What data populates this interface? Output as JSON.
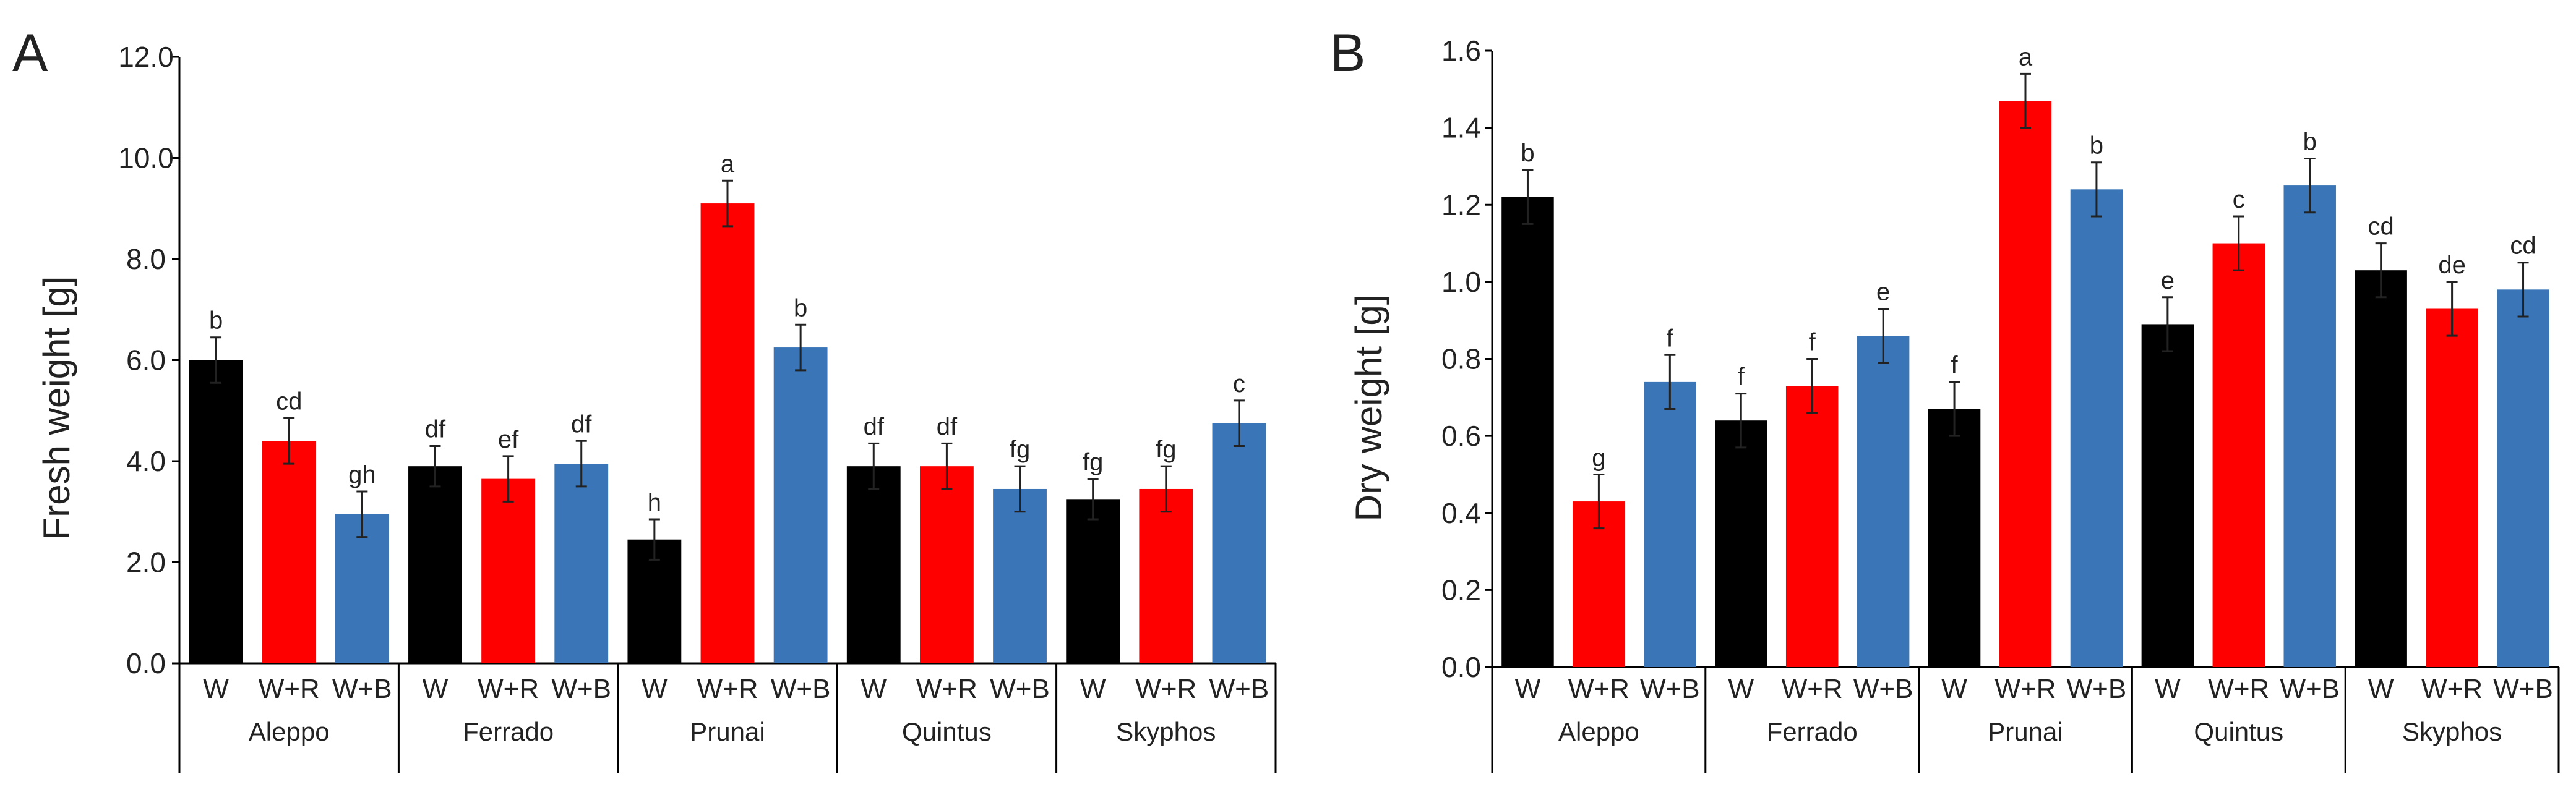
{
  "figure": {
    "colors": {
      "W": "#000000",
      "W+R": "#ff0000",
      "W+B": "#3a76b7",
      "axis": "#000000",
      "error_bar": "#222222"
    }
  },
  "chart_data": [
    {
      "type": "bar",
      "panel_label": "A",
      "title": "",
      "ylabel": "Fresh weight  [g]",
      "xlabel": "",
      "ylim": [
        0,
        12
      ],
      "ytick_values": [
        0,
        2,
        4,
        6,
        8,
        10,
        12
      ],
      "ytick_labels": [
        "0.0",
        "2.0",
        "4.0",
        "6.0",
        "8.0",
        "10.0",
        "12.0"
      ],
      "groups": [
        "Aleppo",
        "Ferrado",
        "Prunai",
        "Quintus",
        "Skyphos"
      ],
      "treatments": [
        "W",
        "W+R",
        "W+B"
      ],
      "series": [
        {
          "name": "W",
          "color": "#000000",
          "values": [
            6.0,
            3.9,
            2.45,
            3.9,
            3.25
          ],
          "errors": [
            0.45,
            0.4,
            0.4,
            0.45,
            0.4
          ],
          "letters": [
            "b",
            "df",
            "h",
            "df",
            "fg"
          ]
        },
        {
          "name": "W+R",
          "color": "#ff0000",
          "values": [
            4.4,
            3.65,
            9.1,
            3.9,
            3.45
          ],
          "errors": [
            0.45,
            0.45,
            0.45,
            0.45,
            0.45
          ],
          "letters": [
            "cd",
            "ef",
            "a",
            "df",
            "fg"
          ]
        },
        {
          "name": "W+B",
          "color": "#3a76b7",
          "values": [
            2.95,
            3.95,
            6.25,
            3.45,
            4.75
          ],
          "errors": [
            0.45,
            0.45,
            0.45,
            0.45,
            0.45
          ],
          "letters": [
            "gh",
            "df",
            "b",
            "fg",
            "c"
          ]
        }
      ]
    },
    {
      "type": "bar",
      "panel_label": "B",
      "title": "",
      "ylabel": "Dry weight  [g]",
      "xlabel": "",
      "ylim": [
        0,
        1.6
      ],
      "ytick_values": [
        0,
        0.2,
        0.4,
        0.6,
        0.8,
        1.0,
        1.2,
        1.4,
        1.6
      ],
      "ytick_labels": [
        "0.0",
        "0.2",
        "0.4",
        "0.6",
        "0.8",
        "1.0",
        "1.2",
        "1.4",
        "1.6"
      ],
      "groups": [
        "Aleppo",
        "Ferrado",
        "Prunai",
        "Quintus",
        "Skyphos"
      ],
      "treatments": [
        "W",
        "W+R",
        "W+B"
      ],
      "series": [
        {
          "name": "W",
          "color": "#000000",
          "values": [
            1.22,
            0.64,
            0.67,
            0.89,
            1.03
          ],
          "errors": [
            0.07,
            0.07,
            0.07,
            0.07,
            0.07
          ],
          "letters": [
            "b",
            "f",
            "f",
            "e",
            "cd"
          ]
        },
        {
          "name": "W+R",
          "color": "#ff0000",
          "values": [
            0.43,
            0.73,
            1.47,
            1.1,
            0.93
          ],
          "errors": [
            0.07,
            0.07,
            0.07,
            0.07,
            0.07
          ],
          "letters": [
            "g",
            "f",
            "a",
            "c",
            "de"
          ]
        },
        {
          "name": "W+B",
          "color": "#3a76b7",
          "values": [
            0.74,
            0.86,
            1.24,
            1.25,
            0.98
          ],
          "errors": [
            0.07,
            0.07,
            0.07,
            0.07,
            0.07
          ],
          "letters": [
            "f",
            "e",
            "b",
            "b",
            "cd"
          ]
        }
      ]
    }
  ]
}
